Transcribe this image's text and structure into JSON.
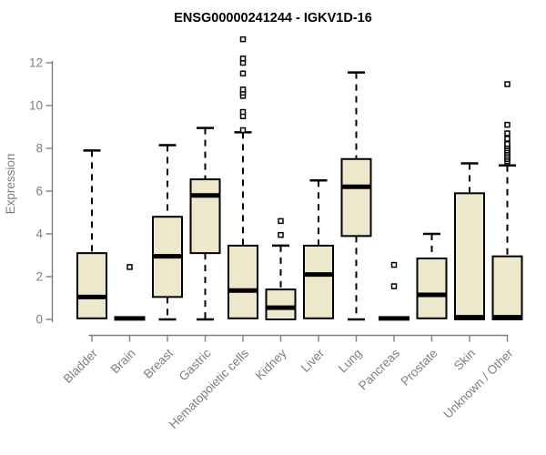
{
  "chart_data": {
    "type": "box",
    "title": "ENSG00000241244 - IGKV1D-16",
    "xlabel": "",
    "ylabel": "Expression",
    "ylim": [
      0,
      13.2
    ],
    "yticks": [
      0,
      2,
      4,
      6,
      8,
      10,
      12
    ],
    "grid": false,
    "legend": false,
    "categories": [
      "Bladder",
      "Brain",
      "Breast",
      "Gastric",
      "Hematopoietic cells",
      "Kidney",
      "Liver",
      "Lung",
      "Pancreas",
      "Prostate",
      "Skin",
      "Unknown / Other"
    ],
    "boxes": [
      {
        "category": "Bladder",
        "whisker_low": 0,
        "q1": 0.05,
        "median": 1.05,
        "q3": 3.1,
        "whisker_high": 7.9,
        "outliers": []
      },
      {
        "category": "Brain",
        "whisker_low": 0,
        "q1": 0.0,
        "median": 0.05,
        "q3": 0.1,
        "whisker_high": 0.1,
        "outliers": [
          2.45
        ]
      },
      {
        "category": "Breast",
        "whisker_low": 0,
        "q1": 1.05,
        "median": 2.95,
        "q3": 4.8,
        "whisker_high": 8.15,
        "outliers": []
      },
      {
        "category": "Gastric",
        "whisker_low": 0,
        "q1": 3.1,
        "median": 5.8,
        "q3": 6.55,
        "whisker_high": 8.95,
        "outliers": []
      },
      {
        "category": "Hematopoietic cells",
        "whisker_low": 0,
        "q1": 0.05,
        "median": 1.35,
        "q3": 3.45,
        "whisker_high": 8.75,
        "outliers": [
          8.85,
          9.5,
          9.7,
          10.45,
          10.6,
          10.75,
          11.5,
          12.0,
          12.2,
          13.1
        ]
      },
      {
        "category": "Kidney",
        "whisker_low": 0,
        "q1": 0.0,
        "median": 0.55,
        "q3": 1.4,
        "whisker_high": 3.45,
        "outliers": [
          3.95,
          4.6
        ]
      },
      {
        "category": "Liver",
        "whisker_low": 0,
        "q1": 0.05,
        "median": 2.1,
        "q3": 3.45,
        "whisker_high": 6.5,
        "outliers": []
      },
      {
        "category": "Lung",
        "whisker_low": 0,
        "q1": 3.9,
        "median": 6.2,
        "q3": 7.5,
        "whisker_high": 11.55,
        "outliers": []
      },
      {
        "category": "Pancreas",
        "whisker_low": 0,
        "q1": 0.0,
        "median": 0.05,
        "q3": 0.1,
        "whisker_high": 0.1,
        "outliers": [
          1.55,
          2.55
        ]
      },
      {
        "category": "Prostate",
        "whisker_low": 0,
        "q1": 0.05,
        "median": 1.15,
        "q3": 2.85,
        "whisker_high": 4.0,
        "outliers": []
      },
      {
        "category": "Skin",
        "whisker_low": 0,
        "q1": 0.0,
        "median": 0.1,
        "q3": 5.9,
        "whisker_high": 7.3,
        "outliers": []
      },
      {
        "category": "Unknown / Other",
        "whisker_low": 0,
        "q1": 0.0,
        "median": 0.1,
        "q3": 2.95,
        "whisker_high": 7.2,
        "outliers": [
          7.4,
          7.5,
          7.6,
          7.7,
          7.8,
          7.9,
          8.0,
          8.1,
          8.2,
          8.45,
          8.7,
          9.1,
          11.0
        ]
      }
    ],
    "colors": {
      "box_fill": "#EDE7CB",
      "box_stroke": "#000000",
      "median": "#000000",
      "whisker": "#000000",
      "outlier_stroke": "#000000",
      "outlier_fill": "#ffffff",
      "axis": "#7e7e7e",
      "label": "#7e7e7e",
      "title": "#000000",
      "background": "#ffffff"
    }
  }
}
